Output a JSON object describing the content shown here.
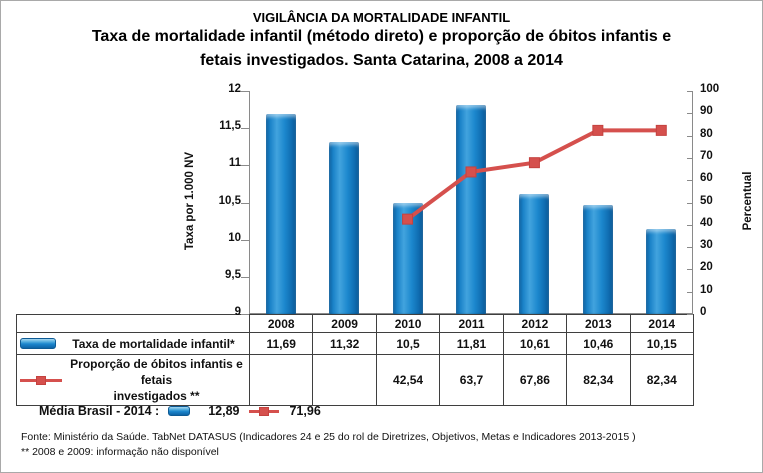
{
  "title": {
    "line1": "VIGILÂNCIA DA MORTALIDADE INFANTIL",
    "line2": "Taxa de mortalidade infantil (método direto) e proporção de óbitos infantis e",
    "line3": "fetais investigados. Santa Catarina, 2008 a 2014"
  },
  "chart_data": {
    "type": "bar+line combo",
    "categories": [
      "2008",
      "2009",
      "2010",
      "2011",
      "2012",
      "2013",
      "2014"
    ],
    "series": [
      {
        "name": "Taxa de mortalidade infantil*",
        "type": "bar",
        "axis": "left",
        "values": [
          11.69,
          11.32,
          10.5,
          11.81,
          10.61,
          10.46,
          10.15
        ],
        "color": "#1787CC"
      },
      {
        "name": "Proporção de óbitos infantis e fetais investigados **",
        "type": "line",
        "axis": "right",
        "values": [
          null,
          null,
          42.54,
          63.7,
          67.86,
          82.34,
          82.34
        ],
        "color": "#D5504D"
      }
    ],
    "left_axis": {
      "title": "Taxa por 1.000 NV",
      "min": 9,
      "max": 12,
      "ticks": [
        "12",
        "11,5",
        "11",
        "10,5",
        "10",
        "9,5",
        "9"
      ]
    },
    "right_axis": {
      "title": "Percentual",
      "min": 0,
      "max": 100,
      "ticks": [
        "100",
        "90",
        "80",
        "70",
        "60",
        "50",
        "40",
        "30",
        "20",
        "10",
        "0"
      ]
    },
    "grid": false,
    "legend_position": "attached data table below chart",
    "table": {
      "rows": [
        {
          "icon": "bar-swatch",
          "label_lines": [
            "Taxa de mortalidade infantil*"
          ],
          "cells": [
            "11,69",
            "11,32",
            "10,5",
            "11,81",
            "10,61",
            "10,46",
            "10,15"
          ]
        },
        {
          "icon": "line-marker-swatch",
          "label_lines": [
            "Proporção de óbitos infantis e fetais",
            "investigados **"
          ],
          "cells": [
            "",
            "",
            "42,54",
            "63,7",
            "67,86",
            "82,34",
            "82,34"
          ]
        }
      ]
    }
  },
  "media_brasil": {
    "label": "Média Brasil - 2014 :",
    "bar_value": "12,89",
    "line_value": "71,96"
  },
  "footer": {
    "line1": "Fonte: Ministério da Saúde. TabNet DATASUS (Indicadores 24 e 25 do rol de Diretrizes, Objetivos, Metas e Indicadores 2013-2015 )",
    "line2": "** 2008 e 2009: informação não disponível"
  },
  "colors": {
    "bar_blue": "#1787CC",
    "line_red": "#D5504D",
    "axis_gray": "#8A8A8A",
    "table_border": "#3F3F3F"
  }
}
